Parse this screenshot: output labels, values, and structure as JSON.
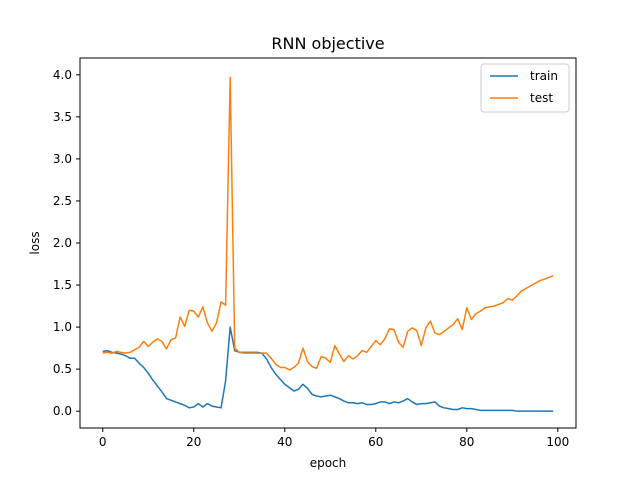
{
  "chart_data": {
    "type": "line",
    "title": "RNN objective",
    "xlabel": "epoch",
    "ylabel": "loss",
    "xlim": [
      -5,
      104
    ],
    "ylim": [
      -0.2,
      4.2
    ],
    "xticks": [
      0,
      20,
      40,
      60,
      80,
      100
    ],
    "yticks": [
      0.0,
      0.5,
      1.0,
      1.5,
      2.0,
      2.5,
      3.0,
      3.5,
      4.0
    ],
    "xtick_labels": [
      "0",
      "20",
      "40",
      "60",
      "80",
      "100"
    ],
    "ytick_labels": [
      "0.0",
      "0.5",
      "1.0",
      "1.5",
      "2.0",
      "2.5",
      "3.0",
      "3.5",
      "4.0"
    ],
    "grid": false,
    "legend_position": "top-right",
    "x": [
      0,
      1,
      2,
      3,
      4,
      5,
      6,
      7,
      8,
      9,
      10,
      11,
      12,
      13,
      14,
      15,
      16,
      17,
      18,
      19,
      20,
      21,
      22,
      23,
      24,
      25,
      26,
      27,
      28,
      29,
      30,
      31,
      32,
      33,
      34,
      35,
      36,
      37,
      38,
      39,
      40,
      41,
      42,
      43,
      44,
      45,
      46,
      47,
      48,
      49,
      50,
      51,
      52,
      53,
      54,
      55,
      56,
      57,
      58,
      59,
      60,
      61,
      62,
      63,
      64,
      65,
      66,
      67,
      68,
      69,
      70,
      71,
      72,
      73,
      74,
      75,
      76,
      77,
      78,
      79,
      80,
      81,
      82,
      83,
      84,
      85,
      86,
      87,
      88,
      89,
      90,
      91,
      92,
      93,
      94,
      95,
      96,
      97,
      98,
      99
    ],
    "series": [
      {
        "name": "train",
        "color": "#1f77b4",
        "values": [
          0.71,
          0.72,
          0.7,
          0.69,
          0.68,
          0.66,
          0.63,
          0.63,
          0.57,
          0.52,
          0.45,
          0.37,
          0.3,
          0.23,
          0.15,
          0.13,
          0.11,
          0.09,
          0.07,
          0.04,
          0.05,
          0.09,
          0.05,
          0.09,
          0.06,
          0.05,
          0.04,
          0.36,
          1.0,
          0.72,
          0.7,
          0.7,
          0.7,
          0.7,
          0.7,
          0.69,
          0.62,
          0.52,
          0.44,
          0.38,
          0.32,
          0.28,
          0.24,
          0.26,
          0.32,
          0.27,
          0.2,
          0.18,
          0.17,
          0.18,
          0.19,
          0.17,
          0.15,
          0.12,
          0.1,
          0.1,
          0.09,
          0.1,
          0.08,
          0.08,
          0.09,
          0.11,
          0.11,
          0.09,
          0.11,
          0.1,
          0.12,
          0.15,
          0.11,
          0.08,
          0.09,
          0.09,
          0.1,
          0.11,
          0.06,
          0.04,
          0.03,
          0.02,
          0.02,
          0.04,
          0.03,
          0.03,
          0.02,
          0.01,
          0.01,
          0.01,
          0.01,
          0.01,
          0.01,
          0.01,
          0.01,
          0.0,
          0.0,
          0.0,
          0.0,
          0.0,
          0.0,
          0.0,
          0.0,
          0.0
        ]
      },
      {
        "name": "test",
        "color": "#ff7f0e",
        "values": [
          0.69,
          0.7,
          0.69,
          0.71,
          0.7,
          0.69,
          0.7,
          0.73,
          0.76,
          0.83,
          0.77,
          0.82,
          0.86,
          0.83,
          0.74,
          0.85,
          0.87,
          1.12,
          1.01,
          1.2,
          1.19,
          1.12,
          1.24,
          1.05,
          0.95,
          1.05,
          1.3,
          1.26,
          3.97,
          0.75,
          0.7,
          0.69,
          0.69,
          0.69,
          0.69,
          0.69,
          0.69,
          0.63,
          0.56,
          0.52,
          0.52,
          0.49,
          0.52,
          0.57,
          0.75,
          0.59,
          0.53,
          0.51,
          0.65,
          0.63,
          0.58,
          0.78,
          0.68,
          0.59,
          0.66,
          0.62,
          0.66,
          0.72,
          0.7,
          0.77,
          0.84,
          0.79,
          0.86,
          0.98,
          0.97,
          0.82,
          0.76,
          0.95,
          0.99,
          0.96,
          0.78,
          0.99,
          1.07,
          0.93,
          0.91,
          0.95,
          0.99,
          1.03,
          1.1,
          0.97,
          1.23,
          1.09,
          1.16,
          1.19,
          1.23,
          1.24,
          1.25,
          1.27,
          1.29,
          1.34,
          1.32,
          1.37,
          1.43,
          1.46,
          1.49,
          1.52,
          1.55,
          1.57,
          1.59,
          1.61
        ]
      }
    ]
  }
}
